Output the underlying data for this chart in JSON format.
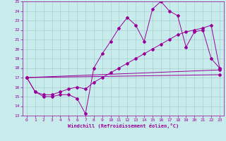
{
  "xlabel": "Windchill (Refroidissement éolien,°C)",
  "background_color": "#c8ecec",
  "line_color": "#990099",
  "grid_color": "#b0d0d0",
  "xlim": [
    -0.5,
    23.5
  ],
  "ylim": [
    13,
    25
  ],
  "xticks": [
    0,
    1,
    2,
    3,
    4,
    5,
    6,
    7,
    8,
    9,
    10,
    11,
    12,
    13,
    14,
    15,
    16,
    17,
    18,
    19,
    20,
    21,
    22,
    23
  ],
  "yticks": [
    13,
    14,
    15,
    16,
    17,
    18,
    19,
    20,
    21,
    22,
    23,
    24,
    25
  ],
  "line1_x": [
    0,
    1,
    2,
    3,
    4,
    5,
    6,
    7,
    8,
    9,
    10,
    11,
    12,
    13,
    14,
    15,
    16,
    17,
    18,
    19,
    20,
    21,
    22,
    23
  ],
  "line1_y": [
    17.0,
    15.5,
    15.0,
    15.0,
    15.2,
    15.2,
    14.8,
    13.2,
    18.0,
    19.5,
    20.8,
    22.2,
    23.3,
    22.5,
    20.8,
    24.2,
    25.0,
    24.0,
    23.5,
    20.2,
    21.8,
    22.0,
    19.0,
    18.0
  ],
  "line2_x": [
    0,
    1,
    2,
    3,
    4,
    5,
    6,
    7,
    8,
    9,
    10,
    11,
    12,
    13,
    14,
    15,
    16,
    17,
    18,
    19,
    20,
    21,
    22,
    23
  ],
  "line2_y": [
    17.0,
    15.5,
    15.2,
    15.2,
    15.5,
    15.8,
    16.0,
    15.8,
    16.5,
    17.0,
    17.5,
    18.0,
    18.5,
    19.0,
    19.5,
    20.0,
    20.5,
    21.0,
    21.5,
    21.8,
    22.0,
    22.2,
    22.5,
    18.0
  ],
  "line3_x": [
    0,
    23
  ],
  "line3_y": [
    17.0,
    17.8
  ],
  "line4_x": [
    0,
    23
  ],
  "line4_y": [
    17.0,
    17.3
  ]
}
